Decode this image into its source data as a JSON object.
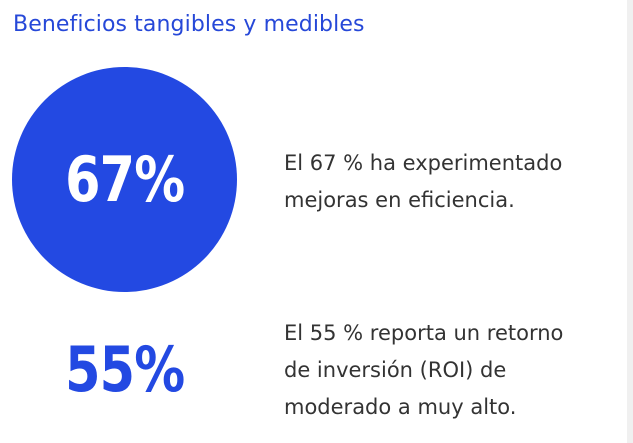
{
  "header": {
    "title": "Beneficios tangibles y medibles"
  },
  "stats": [
    {
      "value": "67%",
      "lines": [
        "El 67 % ha experimentado",
        "mejoras en eficiencia."
      ],
      "style": "filled-circle"
    },
    {
      "value": "55%",
      "lines": [
        "El 55 % reporta un retorno",
        "de inversión (ROI) de",
        "moderado a muy alto."
      ],
      "style": "plain"
    }
  ],
  "colors": {
    "accent": "#2349e2",
    "title": "#2648d8",
    "body_text": "#333333",
    "background": "#ffffff"
  }
}
